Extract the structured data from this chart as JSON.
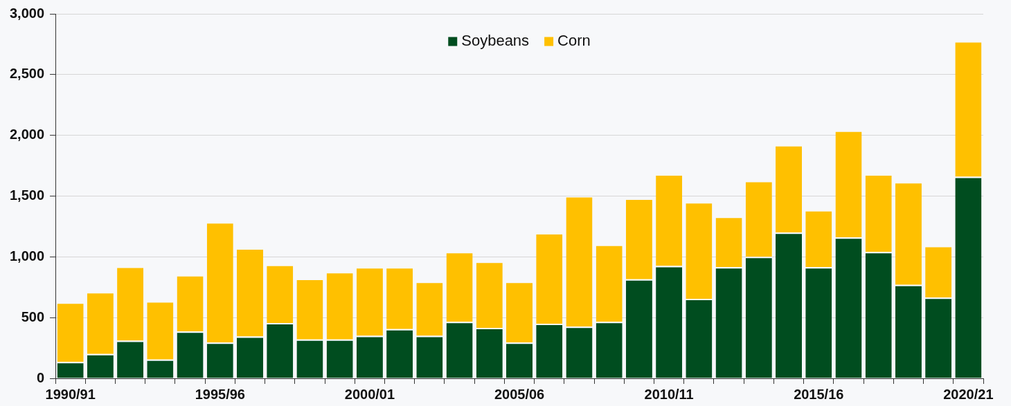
{
  "chart_data": {
    "type": "bar",
    "stacked": true,
    "categories": [
      "1990/91",
      null,
      null,
      null,
      null,
      "1995/96",
      null,
      null,
      null,
      null,
      "2000/01",
      null,
      null,
      null,
      null,
      "2005/06",
      null,
      null,
      null,
      null,
      "2010/11",
      null,
      null,
      null,
      null,
      "2015/16",
      null,
      null,
      null,
      null,
      "2020/21"
    ],
    "series": [
      {
        "name": "Soybeans",
        "color": "#004d1f",
        "values": [
          135,
          200,
          310,
          155,
          385,
          295,
          345,
          455,
          320,
          320,
          350,
          405,
          350,
          465,
          415,
          295,
          450,
          425,
          465,
          815,
          925,
          655,
          915,
          1000,
          1200,
          915,
          1160,
          1040,
          770,
          665,
          1660
        ]
      },
      {
        "name": "Corn",
        "color": "#ffc000",
        "values": [
          490,
          510,
          610,
          480,
          465,
          990,
          725,
          480,
          500,
          555,
          565,
          510,
          445,
          575,
          545,
          500,
          745,
          1075,
          635,
          665,
          755,
          795,
          415,
          625,
          720,
          470,
          880,
          640,
          845,
          425,
          1115
        ]
      }
    ],
    "ylim": [
      0,
      3000
    ],
    "yticks": [
      {
        "value": 0,
        "label": "0"
      },
      {
        "value": 500,
        "label": "500"
      },
      {
        "value": 1000,
        "label": "1,000"
      },
      {
        "value": 1500,
        "label": "1,500"
      },
      {
        "value": 2000,
        "label": "2,000"
      },
      {
        "value": 2500,
        "label": "2,500"
      },
      {
        "value": 3000,
        "label": "3,000"
      }
    ],
    "grid": "y",
    "legend": "top"
  }
}
